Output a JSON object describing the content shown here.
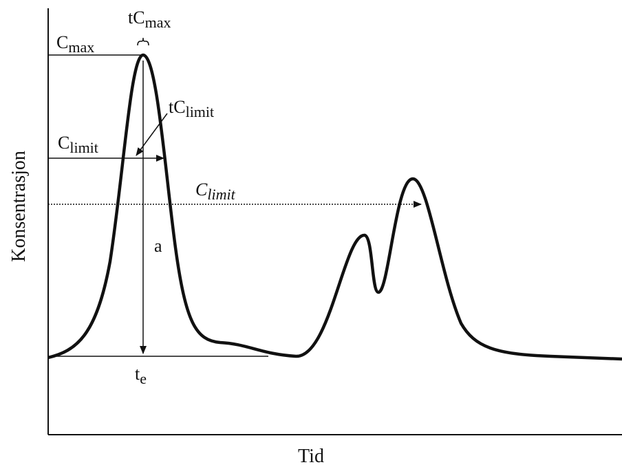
{
  "axes": {
    "y_label": "Konsentrasjon",
    "x_label": "Tid"
  },
  "labels": {
    "t_cmax": {
      "main": "tC",
      "sub": "max"
    },
    "cmax": {
      "main": "C",
      "sub": "max"
    },
    "t_climit": {
      "main": "tC",
      "sub": "limit"
    },
    "climit": {
      "main": "C",
      "sub": "limit"
    },
    "climit_dotted": {
      "main": "C",
      "sub": "limit"
    },
    "a": "a",
    "te": {
      "main": "t",
      "sub": "e"
    }
  }
}
